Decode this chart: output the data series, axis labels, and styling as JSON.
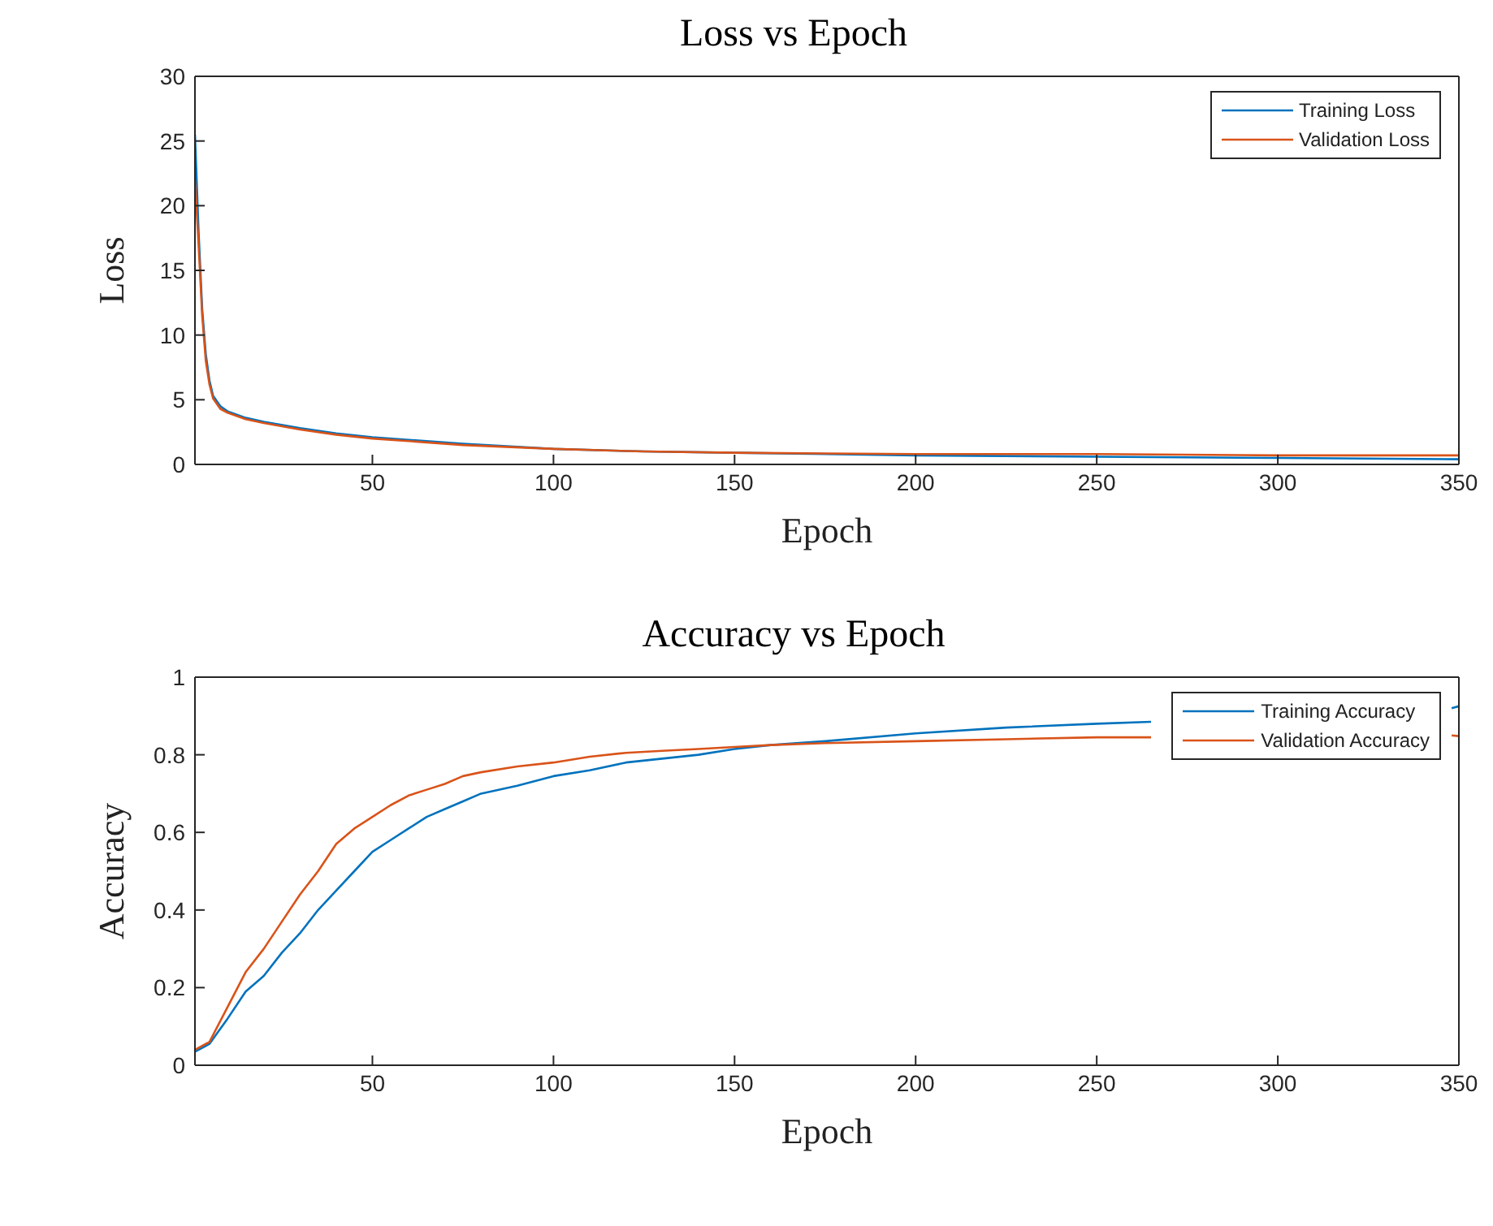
{
  "chart_data": [
    {
      "type": "line",
      "title": "Loss vs Epoch",
      "xlabel": "Epoch",
      "ylabel": "Loss",
      "xlim": [
        1,
        350
      ],
      "xticks": [
        50,
        100,
        150,
        200,
        250,
        300,
        350
      ],
      "ylim": [
        0,
        30
      ],
      "yticks": [
        0,
        5,
        10,
        15,
        20,
        25,
        30
      ],
      "legend": "top right",
      "marker": "none",
      "line_style": "solid",
      "series": [
        {
          "name": "Training Loss",
          "color": "#0072bd",
          "x": [
            1,
            2,
            3,
            4,
            5,
            6,
            8,
            10,
            15,
            20,
            30,
            40,
            50,
            60,
            75,
            100,
            125,
            150,
            200,
            250,
            300,
            350
          ],
          "values": [
            25.5,
            18,
            12,
            8.5,
            6.5,
            5.3,
            4.5,
            4.1,
            3.6,
            3.3,
            2.8,
            2.4,
            2.1,
            1.9,
            1.6,
            1.2,
            1.0,
            0.9,
            0.7,
            0.6,
            0.5,
            0.4
          ]
        },
        {
          "name": "Validation Loss",
          "color": "#d95319",
          "x": [
            1,
            2,
            3,
            4,
            5,
            6,
            8,
            10,
            15,
            20,
            30,
            40,
            50,
            60,
            75,
            100,
            125,
            150,
            200,
            250,
            300,
            350
          ],
          "values": [
            22,
            17,
            11.5,
            8,
            6.2,
            5.1,
            4.3,
            4.0,
            3.5,
            3.2,
            2.7,
            2.3,
            2.0,
            1.8,
            1.5,
            1.2,
            1.0,
            0.9,
            0.8,
            0.8,
            0.7,
            0.7
          ]
        }
      ]
    },
    {
      "type": "line",
      "title": "Accuracy vs Epoch",
      "xlabel": "Epoch",
      "ylabel": "Accuracy",
      "xlim": [
        1,
        350
      ],
      "xticks": [
        50,
        100,
        150,
        200,
        250,
        300,
        350
      ],
      "ylim": [
        0,
        1
      ],
      "yticks": [
        0,
        0.2,
        0.4,
        0.6,
        0.8,
        1
      ],
      "legend": "top right",
      "marker": "none",
      "line_style": "solid",
      "series": [
        {
          "name": "Training Accuracy",
          "color": "#0072bd",
          "x": [
            1,
            5,
            10,
            15,
            20,
            25,
            30,
            35,
            40,
            45,
            50,
            55,
            60,
            65,
            70,
            75,
            80,
            90,
            100,
            110,
            120,
            130,
            140,
            150,
            160,
            175,
            200,
            225,
            250,
            265,
            300,
            325,
            348,
            350
          ],
          "values": [
            0.035,
            0.055,
            0.12,
            0.19,
            0.23,
            0.29,
            0.34,
            0.4,
            0.45,
            0.5,
            0.55,
            0.58,
            0.61,
            0.64,
            0.66,
            0.68,
            0.7,
            0.72,
            0.745,
            0.76,
            0.78,
            0.79,
            0.8,
            0.815,
            0.825,
            0.835,
            0.855,
            0.87,
            0.88,
            0.885,
            null,
            null,
            0.92,
            0.925
          ]
        },
        {
          "name": "Validation Accuracy",
          "color": "#d95319",
          "x": [
            1,
            5,
            10,
            15,
            20,
            25,
            30,
            35,
            40,
            45,
            50,
            55,
            60,
            65,
            70,
            75,
            80,
            90,
            100,
            110,
            120,
            130,
            140,
            150,
            160,
            175,
            200,
            225,
            250,
            265,
            300,
            325,
            348,
            350
          ],
          "values": [
            0.04,
            0.06,
            0.15,
            0.24,
            0.3,
            0.37,
            0.44,
            0.5,
            0.57,
            0.61,
            0.64,
            0.67,
            0.695,
            0.71,
            0.725,
            0.745,
            0.755,
            0.77,
            0.78,
            0.795,
            0.805,
            0.81,
            0.815,
            0.82,
            0.825,
            0.83,
            0.835,
            0.84,
            0.845,
            0.845,
            null,
            null,
            0.85,
            0.848
          ]
        }
      ]
    }
  ]
}
